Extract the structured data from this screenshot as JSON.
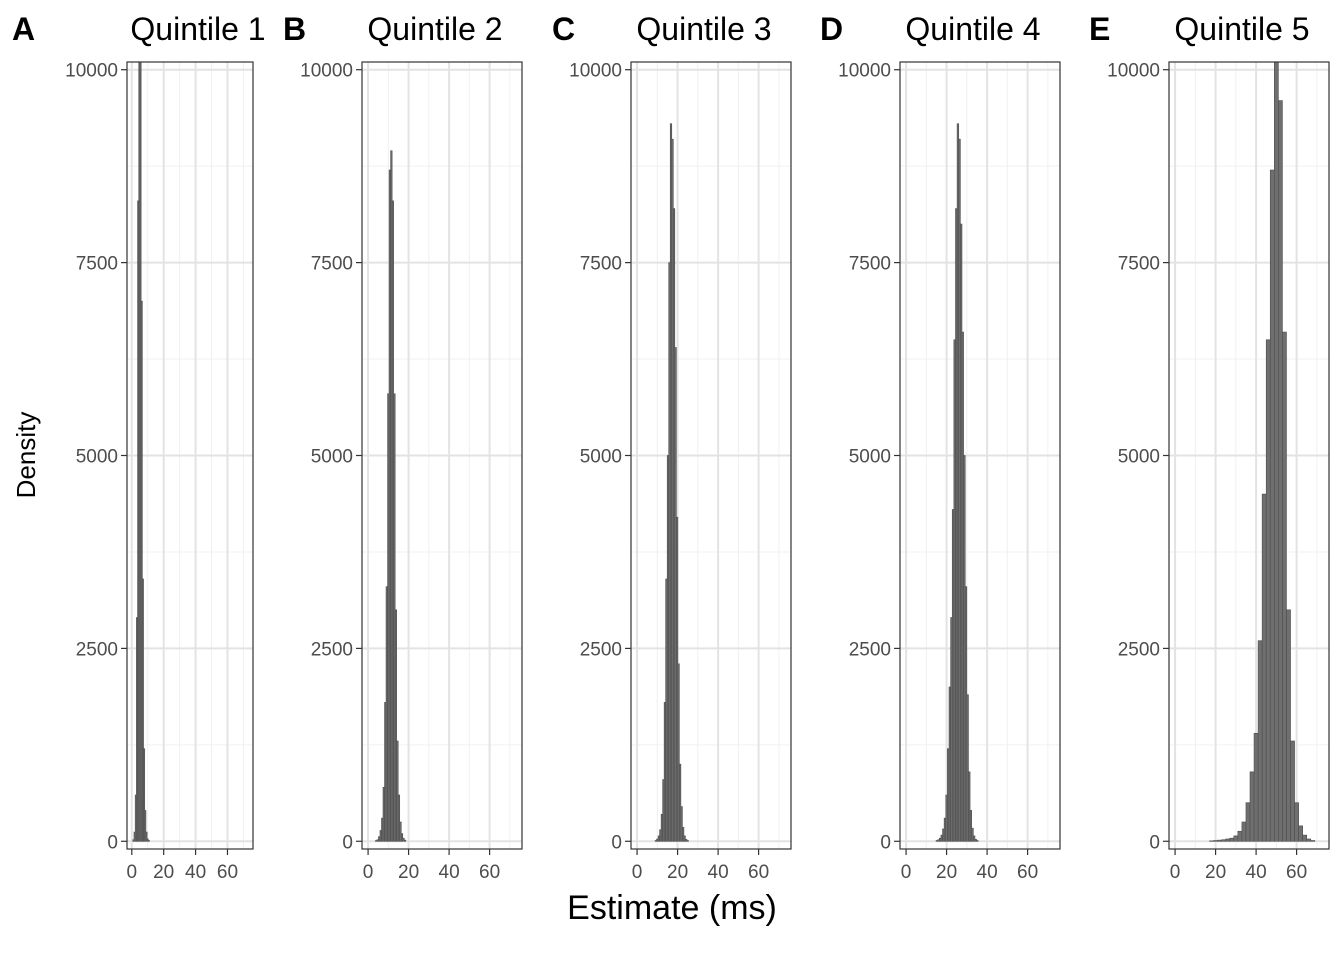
{
  "chart_data": [
    {
      "type": "histogram",
      "panel_letter": "A",
      "title": "Quintile 1",
      "xlim": [
        -3,
        76
      ],
      "ylim": [
        -100,
        10100
      ],
      "x_ticks": [
        0,
        20,
        40,
        60
      ],
      "y_ticks": [
        0,
        2500,
        5000,
        7500,
        10000
      ],
      "bin_width": 0.75,
      "bins": [
        {
          "x": 1.0,
          "y": 20
        },
        {
          "x": 1.75,
          "y": 120
        },
        {
          "x": 2.5,
          "y": 600
        },
        {
          "x": 3.25,
          "y": 2900
        },
        {
          "x": 4.0,
          "y": 8300
        },
        {
          "x": 4.75,
          "y": 10100
        },
        {
          "x": 5.5,
          "y": 10100
        },
        {
          "x": 6.25,
          "y": 7000
        },
        {
          "x": 7.0,
          "y": 3400
        },
        {
          "x": 7.75,
          "y": 1200
        },
        {
          "x": 8.5,
          "y": 400
        },
        {
          "x": 9.25,
          "y": 120
        },
        {
          "x": 10.0,
          "y": 30
        },
        {
          "x": 10.75,
          "y": 10
        }
      ]
    },
    {
      "type": "histogram",
      "panel_letter": "B",
      "title": "Quintile 2",
      "xlim": [
        -3,
        76
      ],
      "ylim": [
        -100,
        10100
      ],
      "x_ticks": [
        0,
        20,
        40,
        60
      ],
      "y_ticks": [
        0,
        2500,
        5000,
        7500,
        10000
      ],
      "bin_width": 0.75,
      "bins": [
        {
          "x": 4.0,
          "y": 10
        },
        {
          "x": 4.75,
          "y": 20
        },
        {
          "x": 5.5,
          "y": 60
        },
        {
          "x": 6.25,
          "y": 140
        },
        {
          "x": 7.0,
          "y": 300
        },
        {
          "x": 7.75,
          "y": 700
        },
        {
          "x": 8.5,
          "y": 1800
        },
        {
          "x": 9.25,
          "y": 3300
        },
        {
          "x": 10.0,
          "y": 5800
        },
        {
          "x": 10.75,
          "y": 8700
        },
        {
          "x": 11.5,
          "y": 8950
        },
        {
          "x": 12.25,
          "y": 8300
        },
        {
          "x": 13.0,
          "y": 5800
        },
        {
          "x": 13.75,
          "y": 3000
        },
        {
          "x": 14.5,
          "y": 1300
        },
        {
          "x": 15.25,
          "y": 600
        },
        {
          "x": 16.0,
          "y": 250
        },
        {
          "x": 16.75,
          "y": 100
        },
        {
          "x": 17.5,
          "y": 40
        },
        {
          "x": 18.25,
          "y": 15
        }
      ]
    },
    {
      "type": "histogram",
      "panel_letter": "C",
      "title": "Quintile 3",
      "xlim": [
        -3,
        76
      ],
      "ylim": [
        -100,
        10100
      ],
      "x_ticks": [
        0,
        20,
        40,
        60
      ],
      "y_ticks": [
        0,
        2500,
        5000,
        7500,
        10000
      ],
      "bin_width": 0.75,
      "bins": [
        {
          "x": 9.25,
          "y": 10
        },
        {
          "x": 10.0,
          "y": 30
        },
        {
          "x": 10.75,
          "y": 70
        },
        {
          "x": 11.5,
          "y": 150
        },
        {
          "x": 12.25,
          "y": 350
        },
        {
          "x": 13.0,
          "y": 800
        },
        {
          "x": 13.75,
          "y": 1800
        },
        {
          "x": 14.5,
          "y": 3400
        },
        {
          "x": 15.25,
          "y": 5000
        },
        {
          "x": 16.0,
          "y": 7500
        },
        {
          "x": 16.75,
          "y": 9300
        },
        {
          "x": 17.5,
          "y": 9100
        },
        {
          "x": 18.25,
          "y": 8200
        },
        {
          "x": 19.0,
          "y": 6400
        },
        {
          "x": 19.75,
          "y": 4200
        },
        {
          "x": 20.5,
          "y": 2300
        },
        {
          "x": 21.25,
          "y": 1000
        },
        {
          "x": 22.0,
          "y": 450
        },
        {
          "x": 22.75,
          "y": 180
        },
        {
          "x": 23.5,
          "y": 70
        },
        {
          "x": 24.25,
          "y": 25
        },
        {
          "x": 25.0,
          "y": 10
        }
      ]
    },
    {
      "type": "histogram",
      "panel_letter": "D",
      "title": "Quintile 4",
      "xlim": [
        -3,
        76
      ],
      "ylim": [
        -100,
        10100
      ],
      "x_ticks": [
        0,
        20,
        40,
        60
      ],
      "y_ticks": [
        0,
        2500,
        5000,
        7500,
        10000
      ],
      "bin_width": 0.8,
      "bins": [
        {
          "x": 15.2,
          "y": 10
        },
        {
          "x": 16.0,
          "y": 20
        },
        {
          "x": 16.8,
          "y": 40
        },
        {
          "x": 17.6,
          "y": 80
        },
        {
          "x": 18.4,
          "y": 160
        },
        {
          "x": 19.2,
          "y": 300
        },
        {
          "x": 20.0,
          "y": 600
        },
        {
          "x": 20.8,
          "y": 1200
        },
        {
          "x": 21.6,
          "y": 2000
        },
        {
          "x": 22.4,
          "y": 2900
        },
        {
          "x": 23.2,
          "y": 4300
        },
        {
          "x": 24.0,
          "y": 6500
        },
        {
          "x": 24.8,
          "y": 8200
        },
        {
          "x": 25.6,
          "y": 9300
        },
        {
          "x": 26.4,
          "y": 9100
        },
        {
          "x": 27.2,
          "y": 8000
        },
        {
          "x": 28.0,
          "y": 6600
        },
        {
          "x": 28.8,
          "y": 5000
        },
        {
          "x": 29.6,
          "y": 3300
        },
        {
          "x": 30.4,
          "y": 1900
        },
        {
          "x": 31.2,
          "y": 900
        },
        {
          "x": 32.0,
          "y": 400
        },
        {
          "x": 32.8,
          "y": 170
        },
        {
          "x": 33.6,
          "y": 70
        },
        {
          "x": 34.4,
          "y": 25
        },
        {
          "x": 35.2,
          "y": 10
        }
      ]
    },
    {
      "type": "histogram",
      "panel_letter": "E",
      "title": "Quintile 5",
      "xlim": [
        -3,
        76
      ],
      "ylim": [
        -100,
        10100
      ],
      "x_ticks": [
        0,
        20,
        40,
        60
      ],
      "y_ticks": [
        0,
        2500,
        5000,
        7500,
        10000
      ],
      "bin_width": 2,
      "bins": [
        {
          "x": 18,
          "y": 5
        },
        {
          "x": 20,
          "y": 10
        },
        {
          "x": 22,
          "y": 15
        },
        {
          "x": 24,
          "y": 20
        },
        {
          "x": 26,
          "y": 30
        },
        {
          "x": 28,
          "y": 40
        },
        {
          "x": 30,
          "y": 70
        },
        {
          "x": 32,
          "y": 130
        },
        {
          "x": 34,
          "y": 250
        },
        {
          "x": 36,
          "y": 500
        },
        {
          "x": 38,
          "y": 900
        },
        {
          "x": 40,
          "y": 1400
        },
        {
          "x": 42,
          "y": 2600
        },
        {
          "x": 44,
          "y": 4500
        },
        {
          "x": 46,
          "y": 6500
        },
        {
          "x": 48,
          "y": 8700
        },
        {
          "x": 50,
          "y": 10100
        },
        {
          "x": 52,
          "y": 9600
        },
        {
          "x": 54,
          "y": 6600
        },
        {
          "x": 56,
          "y": 3000
        },
        {
          "x": 58,
          "y": 1300
        },
        {
          "x": 60,
          "y": 500
        },
        {
          "x": 62,
          "y": 200
        },
        {
          "x": 64,
          "y": 80
        },
        {
          "x": 66,
          "y": 30
        },
        {
          "x": 68,
          "y": 10
        }
      ]
    }
  ],
  "xlabel": "Estimate (ms)",
  "ylabel": "Density",
  "colors": {
    "bar_fill": "#6f6f6f",
    "bar_stroke": "#4d4d4d",
    "grid_major": "#e3e3e3",
    "grid_minor": "#f0f0f0",
    "panel_border": "#333333",
    "tick_text": "#4d4d4d"
  }
}
